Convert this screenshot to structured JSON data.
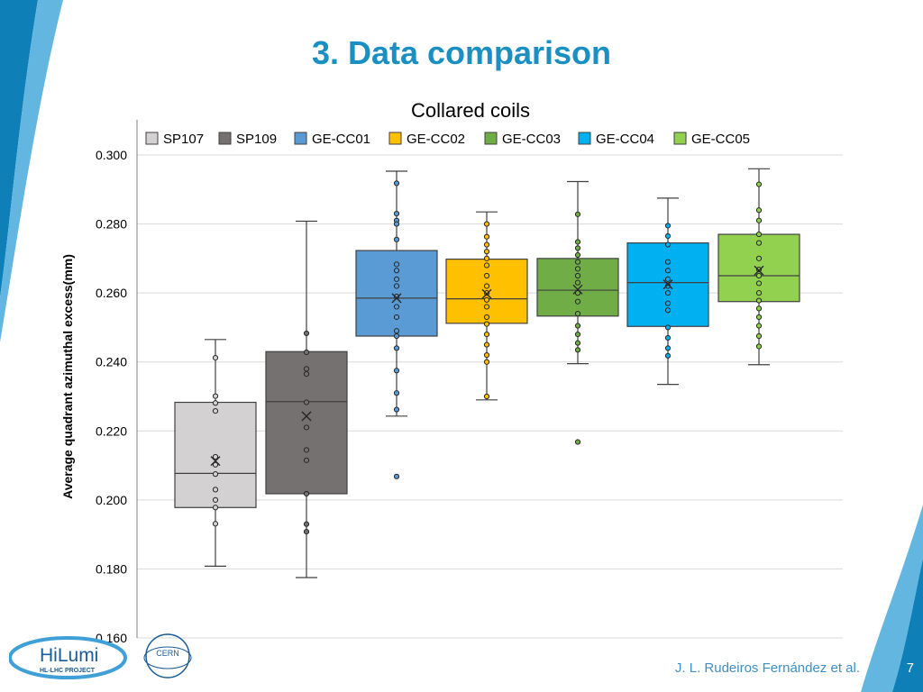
{
  "slide": {
    "title": "3. Data comparison",
    "footer_author": "J. L. Rudeiros Fernández et al.",
    "page_number": "7",
    "colors": {
      "title": "#1a8fc1",
      "decor_blue": "#0f7fb8",
      "decor_light": "#63b6e0"
    }
  },
  "logos": {
    "hilumi_line1": "HiLumi",
    "hilumi_line2": "HL-LHC PROJECT",
    "cern": "CERN"
  },
  "chart_data": {
    "type": "box",
    "title": "Collared coils",
    "xlabel": "",
    "ylabel": "Average quadrant  azimuthal excess(mm)",
    "ylim": [
      0.16,
      0.3
    ],
    "yticks": [
      "0.160",
      "0.180",
      "0.200",
      "0.220",
      "0.240",
      "0.260",
      "0.280",
      "0.300"
    ],
    "grid": true,
    "legend_position": "top",
    "series": [
      {
        "name": "SP107",
        "color": "#d3d1d2",
        "whisker_low": 0.1808,
        "q1": 0.1978,
        "median": 0.2077,
        "q3": 0.2283,
        "whisker_high": 0.2465,
        "mean": 0.2113,
        "points": [
          0.2412,
          0.2301,
          0.2281,
          0.2258,
          0.2125,
          0.2102,
          0.2075,
          0.203,
          0.2,
          0.1978,
          0.1931
        ]
      },
      {
        "name": "SP109",
        "color": "#757171",
        "whisker_low": 0.1775,
        "q1": 0.2018,
        "median": 0.2285,
        "q3": 0.243,
        "whisker_high": 0.2808,
        "mean": 0.2243,
        "points": [
          0.2483,
          0.2428,
          0.238,
          0.2365,
          0.2283,
          0.221,
          0.2145,
          0.2115,
          0.2018,
          0.193,
          0.1908
        ]
      },
      {
        "name": "GE-CC01",
        "color": "#5b9bd5",
        "whisker_low": 0.2243,
        "q1": 0.2475,
        "median": 0.2585,
        "q3": 0.2723,
        "whisker_high": 0.2953,
        "mean": 0.2585,
        "points": [
          0.2918,
          0.283,
          0.281,
          0.28,
          0.2755,
          0.2683,
          0.2665,
          0.264,
          0.262,
          0.259,
          0.256,
          0.253,
          0.249,
          0.2475,
          0.244,
          0.2375,
          0.231,
          0.2262,
          0.2068
        ]
      },
      {
        "name": "GE-CC02",
        "color": "#ffc000",
        "whisker_low": 0.229,
        "q1": 0.2512,
        "median": 0.2583,
        "q3": 0.2698,
        "whisker_high": 0.2835,
        "mean": 0.2597,
        "points": [
          0.28,
          0.2763,
          0.274,
          0.272,
          0.27,
          0.268,
          0.265,
          0.262,
          0.26,
          0.258,
          0.256,
          0.253,
          0.251,
          0.248,
          0.245,
          0.242,
          0.24,
          0.23
        ]
      },
      {
        "name": "GE-CC03",
        "color": "#70ad47",
        "whisker_low": 0.2395,
        "q1": 0.2533,
        "median": 0.2608,
        "q3": 0.27,
        "whisker_high": 0.2923,
        "mean": 0.261,
        "points": [
          0.2828,
          0.2748,
          0.273,
          0.271,
          0.269,
          0.267,
          0.265,
          0.263,
          0.26,
          0.2575,
          0.254,
          0.2505,
          0.248,
          0.2455,
          0.2435,
          0.2168
        ]
      },
      {
        "name": "GE-CC04",
        "color": "#00b0f0",
        "whisker_low": 0.2335,
        "q1": 0.2503,
        "median": 0.263,
        "q3": 0.2745,
        "whisker_high": 0.2875,
        "mean": 0.2625,
        "points": [
          0.2795,
          0.2765,
          0.274,
          0.269,
          0.2665,
          0.264,
          0.262,
          0.26,
          0.257,
          0.255,
          0.25,
          0.247,
          0.244,
          0.2418
        ]
      },
      {
        "name": "GE-CC05",
        "color": "#92d050",
        "whisker_low": 0.2392,
        "q1": 0.2575,
        "median": 0.265,
        "q3": 0.277,
        "whisker_high": 0.296,
        "mean": 0.2665,
        "points": [
          0.2915,
          0.284,
          0.281,
          0.277,
          0.2745,
          0.27,
          0.2668,
          0.265,
          0.2628,
          0.26,
          0.2578,
          0.2555,
          0.253,
          0.2505,
          0.2475,
          0.2445
        ]
      }
    ]
  }
}
